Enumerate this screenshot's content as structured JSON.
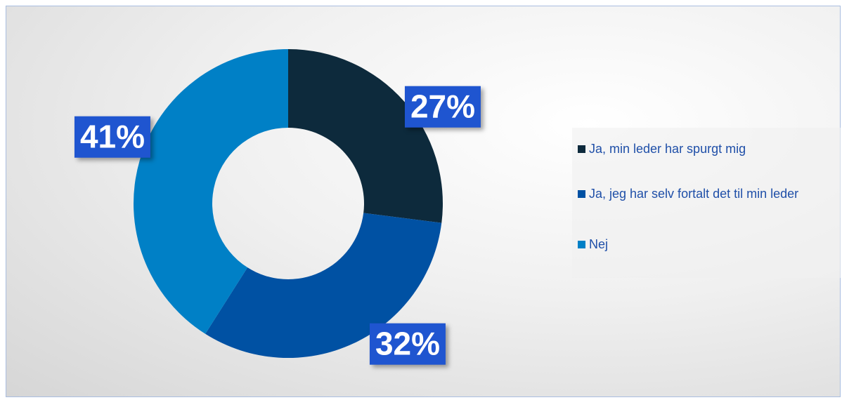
{
  "chart_data": {
    "type": "donut",
    "categories": [
      "Ja, min leder har spurgt mig",
      "Ja, jeg har selv fortalt det til min leder",
      "Nej"
    ],
    "values": [
      27,
      32,
      41
    ],
    "value_labels": [
      "27%",
      "32%",
      "41%"
    ],
    "colors": [
      "#0d2a3c",
      "#0051a3",
      "#0080c6"
    ],
    "legend": "right"
  }
}
